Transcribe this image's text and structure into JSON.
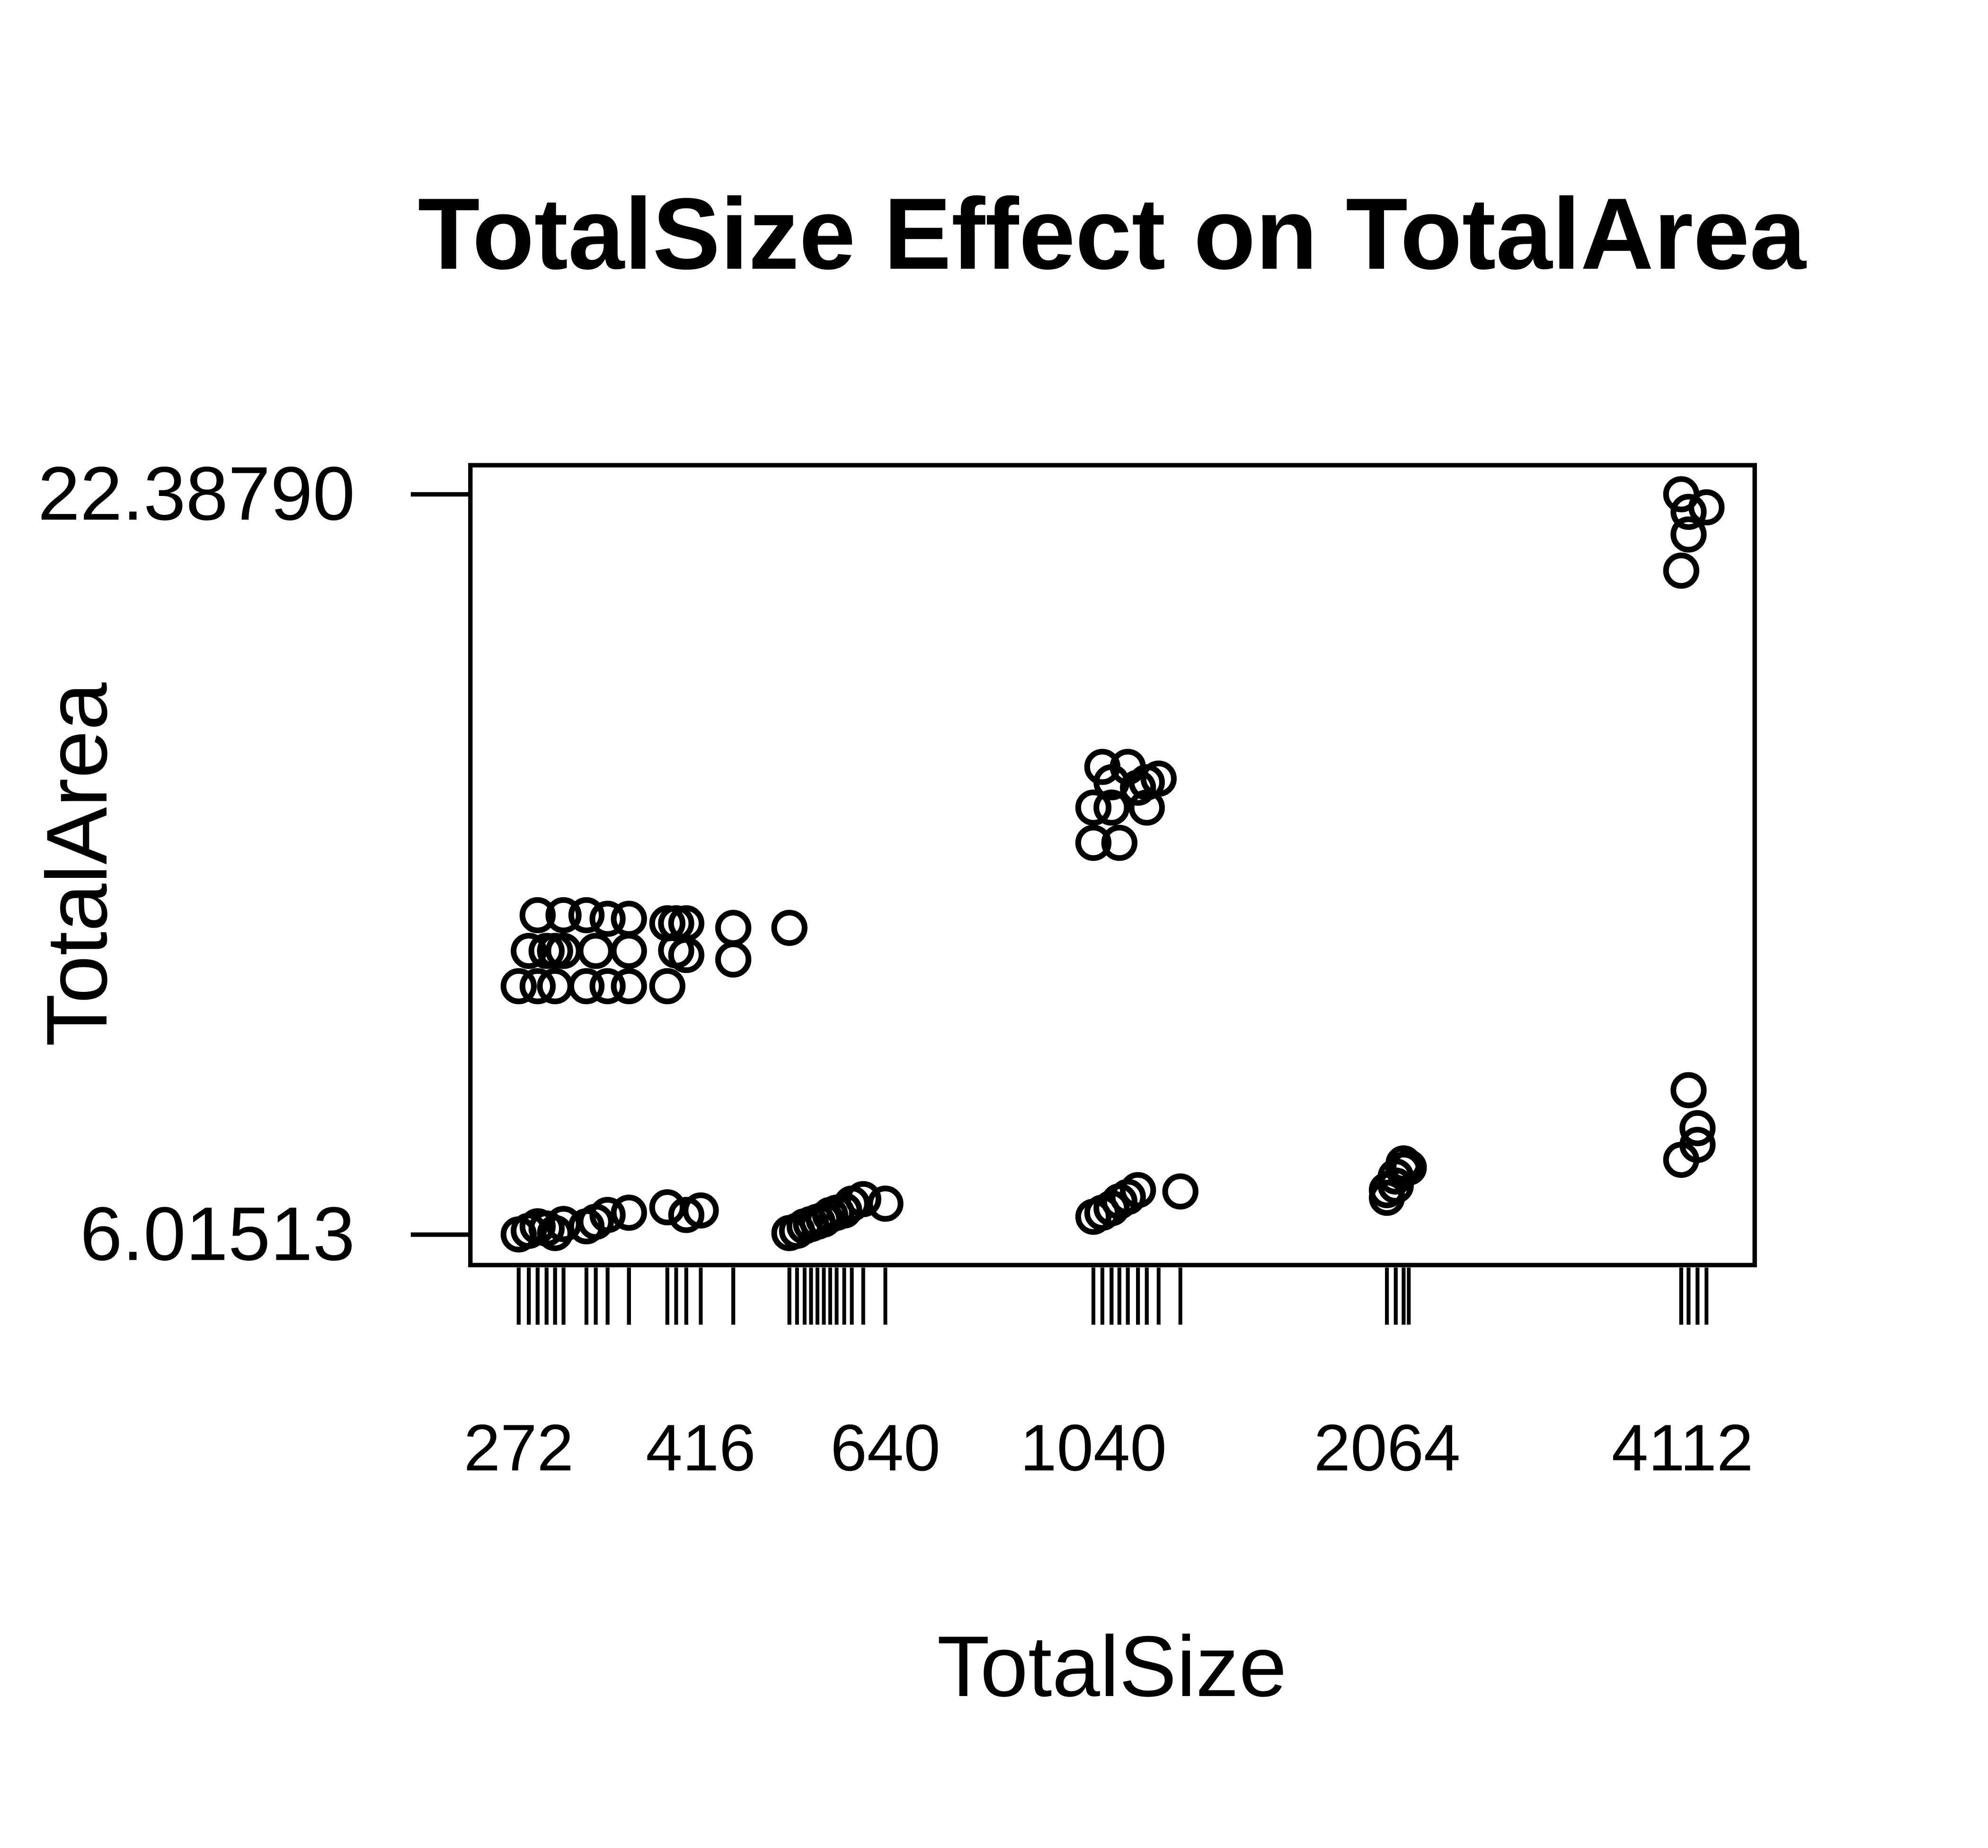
{
  "chart_data": {
    "type": "scatter",
    "title": "TotalSize Effect on TotalArea",
    "x_label": "TotalSize",
    "y_label": "TotalArea",
    "log_x": true,
    "rug": true,
    "color": "#000000",
    "xlim": [
      243,
      4867
    ],
    "ylim": [
      5.342,
      23.032
    ],
    "xticks": [
      272,
      416,
      640,
      1040,
      2064,
      4112
    ],
    "yticks": [
      6.01513,
      {
        "value": 22.3879,
        "label": "22.38790"
      }
    ],
    "x": [
      272,
      272,
      278.5,
      278.5,
      284.3,
      284.3,
      284.3,
      290.3,
      290.3,
      296.1,
      296.1,
      296.1,
      302,
      302,
      302,
      318.6,
      318.6,
      318.6,
      325.6,
      325.6,
      334.7,
      334.7,
      334.7,
      351.8,
      351.8,
      351.8,
      351.8,
      384.8,
      384.8,
      384.8,
      392.8,
      392.8,
      402.2,
      402.2,
      402.2,
      416,
      448.8,
      448.8,
      511.6,
      511.6,
      520.8,
      530.1,
      538.1,
      546.2,
      554.4,
      562.7,
      571.2,
      581.4,
      591.8,
      607.8,
      640,
      1040,
      1040,
      1040,
      1062,
      1062,
      1085,
      1085,
      1085,
      1105,
      1105,
      1127,
      1127,
      1154,
      1154,
      1178,
      1178,
      1211,
      1274,
      2063,
      2063,
      2106,
      2106,
      2145,
      2145,
      2171,
      4100,
      4100,
      4100,
      4171,
      4171,
      4171,
      4259,
      4259,
      4349
    ],
    "y": [
      11.51,
      6.02,
      12.29,
      6.1,
      13.08,
      11.51,
      6.2,
      12.29,
      6.15,
      11.51,
      12.29,
      6.05,
      13.08,
      12.29,
      6.25,
      11.51,
      13.08,
      6.2,
      12.29,
      6.3,
      11.51,
      13.0,
      6.45,
      12.29,
      11.51,
      13.0,
      6.5,
      11.51,
      12.9,
      6.62,
      12.3,
      12.9,
      12.2,
      12.9,
      6.45,
      6.55,
      12.8,
      12.1,
      12.8,
      6.05,
      6.1,
      6.2,
      6.25,
      6.3,
      6.35,
      6.45,
      6.5,
      6.55,
      6.7,
      6.8,
      6.7,
      14.68,
      15.46,
      6.41,
      16.36,
      6.5,
      15.46,
      16.02,
      6.6,
      14.68,
      6.75,
      16.36,
      6.85,
      15.9,
      7.0,
      15.46,
      16.02,
      16.1,
      6.97,
      6.83,
      7.0,
      7.1,
      7.3,
      7.45,
      7.59,
      7.5,
      22.39,
      20.7,
      7.67,
      21.5,
      22.0,
      9.21,
      8.37,
      8.0,
      22.1
    ]
  }
}
